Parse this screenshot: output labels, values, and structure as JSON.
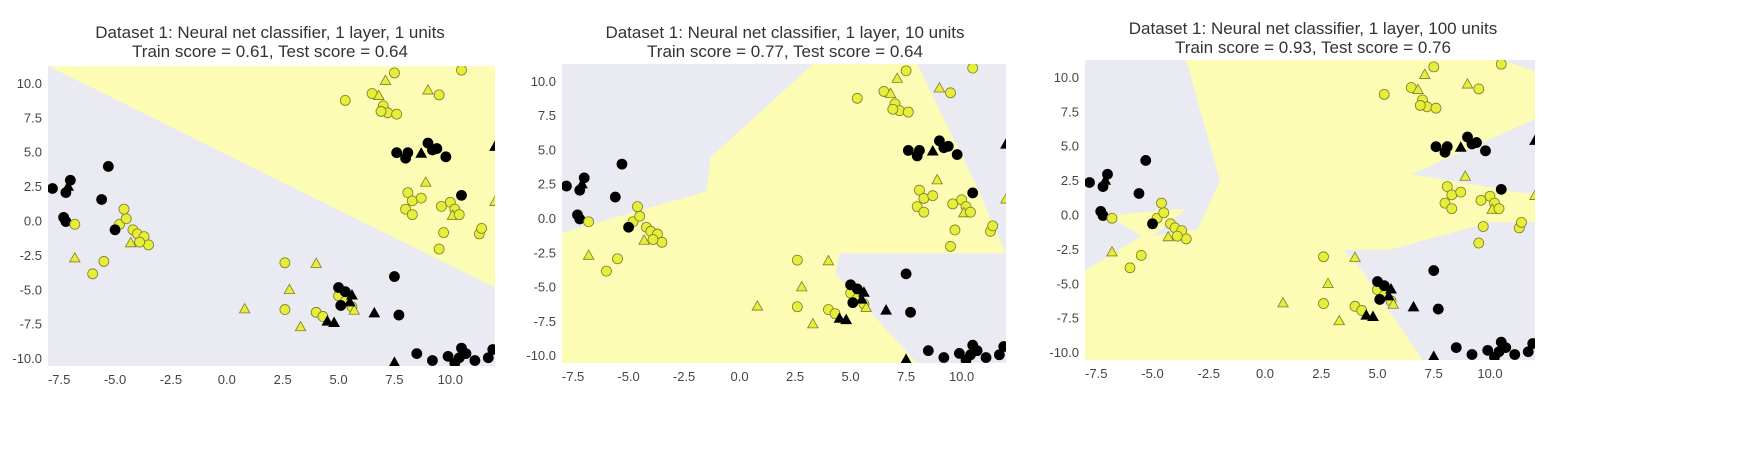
{
  "colors": {
    "background": "#ffffff",
    "plot_bg": "#eaeaf2",
    "class_a_region": "#fcfcb4",
    "class_a_marker": "#e6ee3a",
    "class_a_edge": "#7d7d2a",
    "class_b_marker": "#000000"
  },
  "chart_data": [
    {
      "type": "scatter",
      "title": "Dataset 1: Neural net classifier, 1 layer, 1 units",
      "subtitle": "Train score = 0.61, Test score = 0.64",
      "xlim": [
        -8.0,
        12.0
      ],
      "ylim": [
        -10.5,
        11.3
      ],
      "xticks": [
        "-7.5",
        "-5.0",
        "-2.5",
        "0.0",
        "2.5",
        "5.0",
        "7.5",
        "10.0"
      ],
      "yticks": [
        "10.0",
        "7.5",
        "5.0",
        "2.5",
        "0.0",
        "-2.5",
        "-5.0",
        "-7.5",
        "-10.0"
      ],
      "decision_region_yellow": [
        [
          -8.0,
          11.3
        ],
        [
          12.0,
          11.3
        ],
        [
          12.0,
          -4.8
        ]
      ]
    },
    {
      "type": "scatter",
      "title": "Dataset 1: Neural net classifier, 1 layer, 10 units",
      "subtitle": "Train score = 0.77, Test score = 0.64",
      "xlim": [
        -8.0,
        12.0
      ],
      "ylim": [
        -10.5,
        11.3
      ],
      "xticks": [
        "-7.5",
        "-5.0",
        "-2.5",
        "0.0",
        "2.5",
        "5.0",
        "7.5",
        "10.0"
      ],
      "yticks": [
        "10.0",
        "7.5",
        "5.0",
        "2.5",
        "0.0",
        "-2.5",
        "-5.0",
        "-7.5",
        "-10.0"
      ],
      "decision_region_yellow": [
        [
          -8.0,
          -1.0
        ],
        [
          -1.5,
          2.0
        ],
        [
          -1.3,
          4.5
        ],
        [
          3.3,
          11.3
        ],
        [
          8.0,
          11.3
        ],
        [
          10.5,
          3.0
        ],
        [
          12.0,
          -2.5
        ],
        [
          4.5,
          -2.5
        ],
        [
          4.3,
          -4.0
        ],
        [
          8.0,
          -10.5
        ],
        [
          -8.0,
          -10.5
        ]
      ]
    },
    {
      "type": "scatter",
      "title": "Dataset 1: Neural net classifier, 1 layer, 100 units",
      "subtitle": "Train score = 0.93, Test score = 0.76",
      "xlim": [
        -8.0,
        12.0
      ],
      "ylim": [
        -10.5,
        11.3
      ],
      "xticks": [
        "-7.5",
        "-5.0",
        "-2.5",
        "0.0",
        "2.5",
        "5.0",
        "7.5",
        "10.0"
      ],
      "yticks": [
        "10.0",
        "7.5",
        "5.0",
        "2.5",
        "0.0",
        "-2.5",
        "-5.0",
        "-7.5",
        "-10.0"
      ],
      "decision_region_yellow": [
        [
          -8.0,
          -4.0
        ],
        [
          -5.5,
          -1.5
        ],
        [
          -7.0,
          0.0
        ],
        [
          -3.5,
          0.5
        ],
        [
          -5.0,
          -1.5
        ],
        [
          -3.0,
          -1.0
        ],
        [
          -2.0,
          2.5
        ],
        [
          -3.5,
          11.3
        ],
        [
          10.5,
          11.3
        ],
        [
          12.0,
          10.5
        ],
        [
          12.0,
          7.0
        ],
        [
          6.5,
          3.0
        ],
        [
          12.0,
          1.5
        ],
        [
          12.0,
          -0.5
        ],
        [
          10.0,
          -0.5
        ],
        [
          5.5,
          -2.5
        ],
        [
          3.5,
          -2.5
        ],
        [
          4.3,
          -4.0
        ],
        [
          7.0,
          -10.5
        ],
        [
          -8.0,
          -10.5
        ]
      ]
    }
  ],
  "points": [
    {
      "x": -7.8,
      "y": 2.4,
      "c": "b",
      "m": "o"
    },
    {
      "x": -7.2,
      "y": 2.1,
      "c": "b",
      "m": "o"
    },
    {
      "x": -7.0,
      "y": 3.0,
      "c": "b",
      "m": "o"
    },
    {
      "x": -7.1,
      "y": 2.5,
      "c": "b",
      "m": "^"
    },
    {
      "x": -7.3,
      "y": 0.3,
      "c": "b",
      "m": "o"
    },
    {
      "x": -7.2,
      "y": 0.0,
      "c": "b",
      "m": "o"
    },
    {
      "x": -6.8,
      "y": -0.2,
      "c": "a",
      "m": "o"
    },
    {
      "x": -5.3,
      "y": 4.0,
      "c": "b",
      "m": "o"
    },
    {
      "x": -5.6,
      "y": 1.6,
      "c": "b",
      "m": "o"
    },
    {
      "x": -4.8,
      "y": -0.2,
      "c": "a",
      "m": "o"
    },
    {
      "x": -4.5,
      "y": 0.2,
      "c": "a",
      "m": "o"
    },
    {
      "x": -4.6,
      "y": 0.9,
      "c": "a",
      "m": "o"
    },
    {
      "x": -4.2,
      "y": -0.6,
      "c": "a",
      "m": "o"
    },
    {
      "x": -4.0,
      "y": -0.9,
      "c": "a",
      "m": "o"
    },
    {
      "x": -4.3,
      "y": -1.6,
      "c": "a",
      "m": "^"
    },
    {
      "x": -3.7,
      "y": -1.1,
      "c": "a",
      "m": "o"
    },
    {
      "x": -3.5,
      "y": -1.7,
      "c": "a",
      "m": "o"
    },
    {
      "x": -3.9,
      "y": -1.5,
      "c": "a",
      "m": "o"
    },
    {
      "x": -5.0,
      "y": -0.6,
      "c": "b",
      "m": "o"
    },
    {
      "x": -6.8,
      "y": -2.7,
      "c": "a",
      "m": "^"
    },
    {
      "x": -6.0,
      "y": -3.8,
      "c": "a",
      "m": "o"
    },
    {
      "x": -5.5,
      "y": -2.9,
      "c": "a",
      "m": "o"
    },
    {
      "x": 5.3,
      "y": 8.8,
      "c": "a",
      "m": "o"
    },
    {
      "x": 6.5,
      "y": 9.3,
      "c": "a",
      "m": "o"
    },
    {
      "x": 6.8,
      "y": 9.1,
      "c": "a",
      "m": "^"
    },
    {
      "x": 7.0,
      "y": 8.4,
      "c": "a",
      "m": "o"
    },
    {
      "x": 7.2,
      "y": 7.9,
      "c": "a",
      "m": "o"
    },
    {
      "x": 6.9,
      "y": 8.0,
      "c": "a",
      "m": "o"
    },
    {
      "x": 7.6,
      "y": 7.8,
      "c": "a",
      "m": "o"
    },
    {
      "x": 7.5,
      "y": 10.8,
      "c": "a",
      "m": "o"
    },
    {
      "x": 7.1,
      "y": 10.2,
      "c": "a",
      "m": "^"
    },
    {
      "x": 9.0,
      "y": 9.5,
      "c": "a",
      "m": "^"
    },
    {
      "x": 9.5,
      "y": 9.2,
      "c": "a",
      "m": "o"
    },
    {
      "x": 10.5,
      "y": 11.0,
      "c": "a",
      "m": "o"
    },
    {
      "x": 7.6,
      "y": 5.0,
      "c": "b",
      "m": "o"
    },
    {
      "x": 8.1,
      "y": 5.0,
      "c": "b",
      "m": "o"
    },
    {
      "x": 8.0,
      "y": 4.6,
      "c": "b",
      "m": "o"
    },
    {
      "x": 8.7,
      "y": 4.9,
      "c": "b",
      "m": "^"
    },
    {
      "x": 9.0,
      "y": 5.7,
      "c": "b",
      "m": "o"
    },
    {
      "x": 9.2,
      "y": 5.2,
      "c": "b",
      "m": "o"
    },
    {
      "x": 9.4,
      "y": 5.3,
      "c": "b",
      "m": "o"
    },
    {
      "x": 9.8,
      "y": 4.7,
      "c": "b",
      "m": "o"
    },
    {
      "x": 12.0,
      "y": 5.4,
      "c": "b",
      "m": "^"
    },
    {
      "x": 10.5,
      "y": 1.9,
      "c": "b",
      "m": "o"
    },
    {
      "x": 8.1,
      "y": 2.1,
      "c": "a",
      "m": "o"
    },
    {
      "x": 8.3,
      "y": 1.5,
      "c": "a",
      "m": "o"
    },
    {
      "x": 8.7,
      "y": 1.7,
      "c": "a",
      "m": "o"
    },
    {
      "x": 8.9,
      "y": 2.8,
      "c": "a",
      "m": "^"
    },
    {
      "x": 8.0,
      "y": 0.9,
      "c": "a",
      "m": "o"
    },
    {
      "x": 8.3,
      "y": 0.5,
      "c": "a",
      "m": "o"
    },
    {
      "x": 9.6,
      "y": 1.1,
      "c": "a",
      "m": "o"
    },
    {
      "x": 10.0,
      "y": 1.4,
      "c": "a",
      "m": "o"
    },
    {
      "x": 10.2,
      "y": 0.9,
      "c": "a",
      "m": "o"
    },
    {
      "x": 10.1,
      "y": 0.4,
      "c": "a",
      "m": "^"
    },
    {
      "x": 10.4,
      "y": 0.5,
      "c": "a",
      "m": "o"
    },
    {
      "x": 9.7,
      "y": -0.8,
      "c": "a",
      "m": "o"
    },
    {
      "x": 9.5,
      "y": -2.0,
      "c": "a",
      "m": "o"
    },
    {
      "x": 11.3,
      "y": -0.9,
      "c": "a",
      "m": "o"
    },
    {
      "x": 11.4,
      "y": -0.5,
      "c": "a",
      "m": "o"
    },
    {
      "x": 12.0,
      "y": 1.4,
      "c": "a",
      "m": "^"
    },
    {
      "x": 2.6,
      "y": -3.0,
      "c": "a",
      "m": "o"
    },
    {
      "x": 4.0,
      "y": -3.1,
      "c": "a",
      "m": "^"
    },
    {
      "x": 2.8,
      "y": -5.0,
      "c": "a",
      "m": "^"
    },
    {
      "x": 2.6,
      "y": -6.4,
      "c": "a",
      "m": "o"
    },
    {
      "x": 3.3,
      "y": -7.7,
      "c": "a",
      "m": "^"
    },
    {
      "x": 4.0,
      "y": -6.6,
      "c": "a",
      "m": "o"
    },
    {
      "x": 4.3,
      "y": -6.9,
      "c": "a",
      "m": "o"
    },
    {
      "x": 5.0,
      "y": -5.4,
      "c": "a",
      "m": "o"
    },
    {
      "x": 5.3,
      "y": -5.8,
      "c": "a",
      "m": "o"
    },
    {
      "x": 5.6,
      "y": -6.2,
      "c": "a",
      "m": "o"
    },
    {
      "x": 5.7,
      "y": -6.5,
      "c": "a",
      "m": "^"
    },
    {
      "x": 0.8,
      "y": -6.4,
      "c": "a",
      "m": "^"
    },
    {
      "x": 5.0,
      "y": -4.8,
      "c": "b",
      "m": "o"
    },
    {
      "x": 5.3,
      "y": -5.1,
      "c": "b",
      "m": "o"
    },
    {
      "x": 5.6,
      "y": -5.4,
      "c": "b",
      "m": "^"
    },
    {
      "x": 5.5,
      "y": -5.9,
      "c": "b",
      "m": "^"
    },
    {
      "x": 5.1,
      "y": -6.1,
      "c": "b",
      "m": "o"
    },
    {
      "x": 4.5,
      "y": -7.3,
      "c": "b",
      "m": "^"
    },
    {
      "x": 4.8,
      "y": -7.4,
      "c": "b",
      "m": "^"
    },
    {
      "x": 6.6,
      "y": -6.7,
      "c": "b",
      "m": "^"
    },
    {
      "x": 7.5,
      "y": -4.0,
      "c": "b",
      "m": "o"
    },
    {
      "x": 7.7,
      "y": -6.8,
      "c": "b",
      "m": "o"
    },
    {
      "x": 7.5,
      "y": -10.3,
      "c": "b",
      "m": "^"
    },
    {
      "x": 8.5,
      "y": -9.6,
      "c": "b",
      "m": "o"
    },
    {
      "x": 9.2,
      "y": -10.1,
      "c": "b",
      "m": "o"
    },
    {
      "x": 9.9,
      "y": -9.8,
      "c": "b",
      "m": "o"
    },
    {
      "x": 10.2,
      "y": -10.3,
      "c": "b",
      "m": "o"
    },
    {
      "x": 10.5,
      "y": -9.2,
      "c": "b",
      "m": "o"
    },
    {
      "x": 10.7,
      "y": -9.6,
      "c": "b",
      "m": "o"
    },
    {
      "x": 10.4,
      "y": -9.9,
      "c": "b",
      "m": "o"
    },
    {
      "x": 11.1,
      "y": -10.1,
      "c": "b",
      "m": "o"
    },
    {
      "x": 11.7,
      "y": -9.9,
      "c": "b",
      "m": "o"
    },
    {
      "x": 11.9,
      "y": -9.3,
      "c": "b",
      "m": "o"
    }
  ]
}
